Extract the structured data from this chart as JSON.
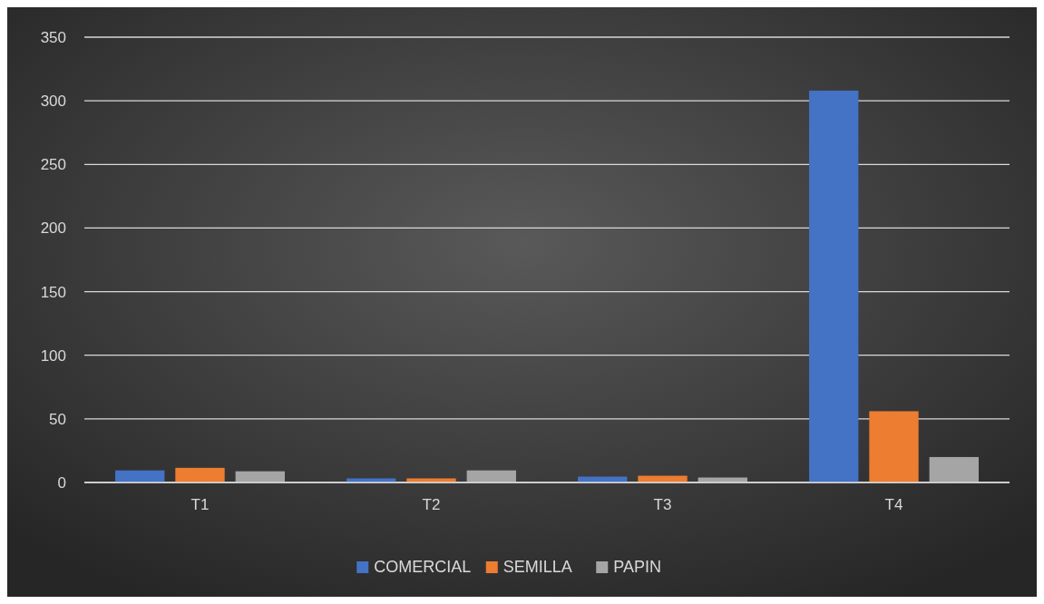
{
  "chart_data": {
    "type": "bar",
    "categories": [
      "T1",
      "T2",
      "T3",
      "T4"
    ],
    "series": [
      {
        "name": "COMERCIAL",
        "color": "#4472c4",
        "values": [
          9.5,
          3.2,
          4.6,
          308
        ]
      },
      {
        "name": "SEMILLA",
        "color": "#ed7d31",
        "values": [
          11.5,
          3.2,
          5.3,
          56
        ]
      },
      {
        "name": "PAPIN",
        "color": "#a5a5a5",
        "values": [
          8.8,
          9.5,
          3.9,
          20
        ]
      }
    ],
    "ylim": [
      0,
      350
    ],
    "yticks": [
      0,
      50,
      100,
      150,
      200,
      250,
      300,
      350
    ],
    "grid": "y",
    "legend": "bottom"
  }
}
